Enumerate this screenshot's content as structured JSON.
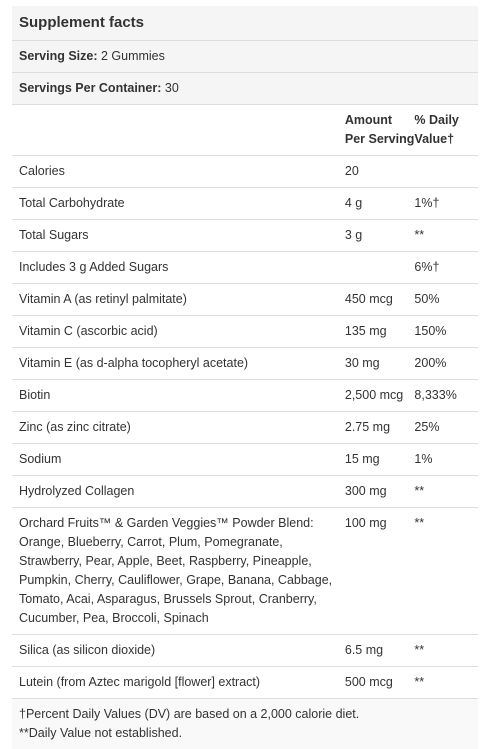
{
  "panel": {
    "title": "Supplement facts",
    "serving_size_label": "Serving Size:",
    "serving_size_value": "2 Gummies",
    "servings_label": "Servings Per Container:",
    "servings_value": "30",
    "header": {
      "amount": "Amount Per Serving",
      "dv": "% Daily Value†"
    },
    "rows": [
      {
        "name": "Calories",
        "amount": "20",
        "dv": ""
      },
      {
        "name": "Total Carbohydrate",
        "amount": "4 g",
        "dv": "1%†"
      },
      {
        "name": "Total Sugars",
        "amount": "3 g",
        "dv": "**"
      },
      {
        "name": "Includes 3 g Added Sugars",
        "amount": "",
        "dv": "6%†"
      },
      {
        "name": "Vitamin A (as retinyl palmitate)",
        "amount": "450 mcg",
        "dv": "50%"
      },
      {
        "name": "Vitamin C (ascorbic acid)",
        "amount": "135 mg",
        "dv": "150%"
      },
      {
        "name": "Vitamin E (as d-alpha tocopheryl acetate)",
        "amount": "30 mg",
        "dv": "200%"
      },
      {
        "name": "Biotin",
        "amount": "2,500 mcg",
        "dv": "8,333%"
      },
      {
        "name": "Zinc (as zinc citrate)",
        "amount": "2.75 mg",
        "dv": "25%"
      },
      {
        "name": "Sodium",
        "amount": "15 mg",
        "dv": "1%"
      },
      {
        "name": "Hydrolyzed Collagen",
        "amount": "300 mg",
        "dv": "**"
      },
      {
        "name": "Orchard Fruits™ & Garden Veggies™ Powder Blend: Orange, Blueberry, Carrot, Plum, Pomegranate, Strawberry, Pear, Apple, Beet, Raspberry, Pineapple, Pumpkin, Cherry, Cauliflower, Grape, Banana, Cabbage, Tomato, Acai, Asparagus, Brussels Sprout, Cranberry, Cucumber, Pea, Broccoli, Spinach",
        "amount": "100 mg",
        "dv": "**"
      },
      {
        "name": "Silica (as silicon dioxide)",
        "amount": "6.5 mg",
        "dv": "**"
      },
      {
        "name": "Lutein (from Aztec marigold [flower] extract)",
        "amount": "500 mcg",
        "dv": "**"
      }
    ],
    "footnote_1": "†Percent Daily Values (DV) are based on a 2,000 calorie diet.",
    "footnote_2": "**Daily Value not established."
  }
}
